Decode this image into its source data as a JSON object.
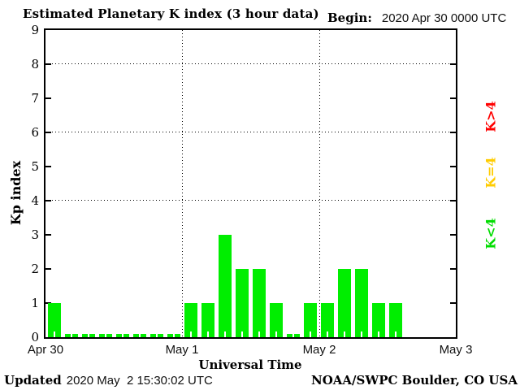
{
  "header": {
    "title": "Estimated Planetary K index (3 hour data)",
    "begin_label": "Begin:",
    "begin_value": "2020 Apr 30 0000 UTC"
  },
  "footer": {
    "updated_label": "Updated",
    "updated_value": "2020 May  2 15:30:02 UTC",
    "credit": "NOAA/SWPC Boulder, CO USA"
  },
  "chart_data": {
    "type": "bar",
    "title": "Estimated Planetary K index (3 hour data)",
    "xlabel": "Universal Time",
    "ylabel": "Kp index",
    "ylim": [
      0,
      9
    ],
    "yticks": [
      0,
      1,
      2,
      3,
      4,
      5,
      6,
      7,
      8,
      9
    ],
    "hgrid_at": [
      4,
      6,
      8
    ],
    "grid": "dotted",
    "interval_hours": 3,
    "day_labels": [
      "Apr 30",
      "May 1",
      "May 2",
      "May 3"
    ],
    "series": [
      {
        "name": "Kp Apr 30",
        "values": [
          1,
          0,
          0,
          0,
          0,
          0,
          0,
          0
        ]
      },
      {
        "name": "Kp May 1",
        "values": [
          1,
          1,
          3,
          2,
          2,
          1,
          0,
          1
        ]
      },
      {
        "name": "Kp May 2",
        "values": [
          1,
          2,
          2,
          1,
          1
        ]
      }
    ],
    "bar_color": "#00ee00",
    "legend_position": "right",
    "legend": [
      {
        "label": "K>4",
        "color": "#ff0000"
      },
      {
        "label": "K=4",
        "color": "#ffcc00"
      },
      {
        "label": "K<4",
        "color": "#00dd00"
      }
    ]
  }
}
